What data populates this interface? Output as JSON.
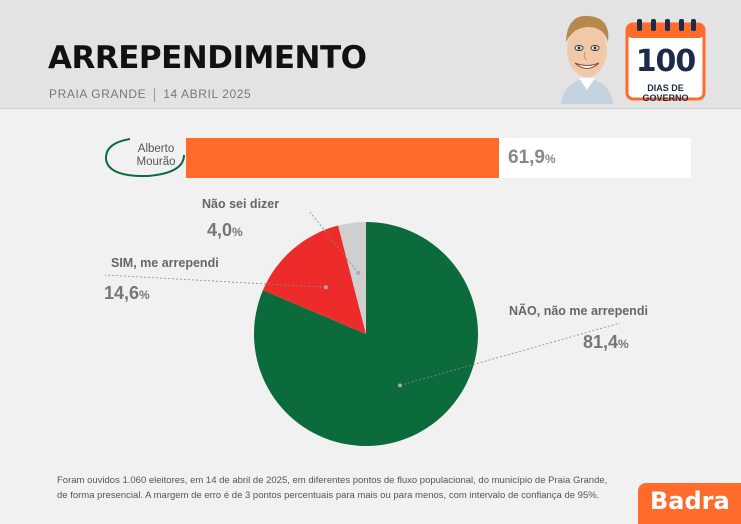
{
  "header": {
    "title": "ARREPENDIMENTO",
    "location": "PRAIA GRANDE",
    "date": "14 ABRIL 2025",
    "badge_number": "100",
    "badge_text": "DIAS DE GOVERNO"
  },
  "candidate": {
    "name_line1": "Alberto",
    "name_line2": "Mourão",
    "bar_value": 61.9,
    "bar_value_text": "61,9",
    "bar_value_suffix": "%",
    "bar_color": "#ff6b2b"
  },
  "chart_data": {
    "type": "pie",
    "series": [
      {
        "name": "NÃO, não me arrependi",
        "value": 81.4,
        "value_text": "81,4",
        "color": "#0b6b3a"
      },
      {
        "name": "SIM, me arrependi",
        "value": 14.6,
        "value_text": "14,6",
        "color": "#ee2b2b"
      },
      {
        "name": "Não sei dizer",
        "value": 4.0,
        "value_text": "4,0",
        "color": "#cfcfcf"
      }
    ],
    "unit": "%"
  },
  "footnote": {
    "line1": "Foram ouvidos 1.060 eleitores, em 14 de abril de 2025, em diferentes pontos de fluxo populacional, do município de Praia Grande,",
    "line2": "de forma presencial. A margem de erro é de 3 pontos percentuais para mais ou para menos, com intervalo de confiança de 95%."
  },
  "brand": {
    "logo": "Badra",
    "color": "#ff6b2b"
  }
}
